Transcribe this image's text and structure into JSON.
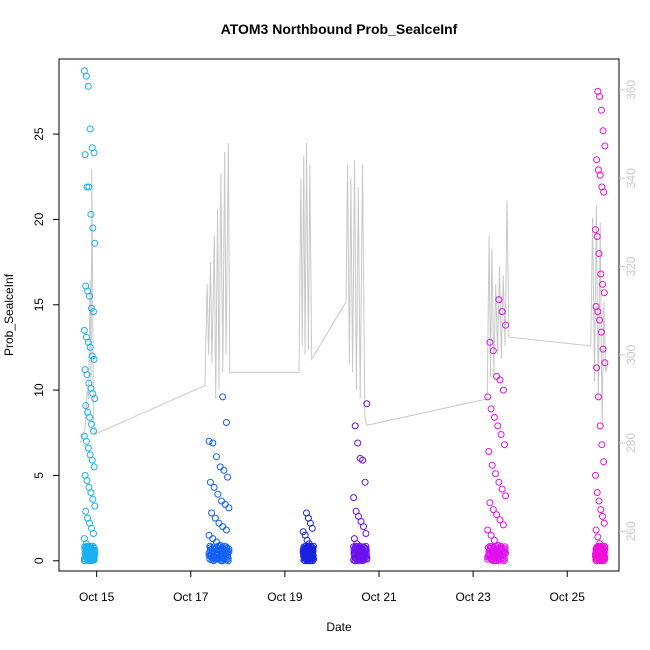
{
  "chart_data": {
    "type": "scatter",
    "title": "ATOM3 Northbound Prob_SealceInf",
    "xlabel": "Date",
    "ylabel": "Prob_SealceInf",
    "x_ticks": [
      {
        "day": 15,
        "label": "Oct 15"
      },
      {
        "day": 17,
        "label": "Oct 17"
      },
      {
        "day": 19,
        "label": "Oct 19"
      },
      {
        "day": 21,
        "label": "Oct 21"
      },
      {
        "day": 23,
        "label": "Oct 23"
      },
      {
        "day": 25,
        "label": "Oct 25"
      }
    ],
    "xlim": [
      14.2,
      26.1
    ],
    "ylim": [
      -0.6,
      29.4
    ],
    "y_ticks": [
      0,
      5,
      10,
      15,
      20,
      25
    ],
    "y2_ticks": [
      260,
      280,
      300,
      320,
      340,
      360
    ],
    "y2lim": [
      251,
      367
    ],
    "colors": {
      "line": "#c8c8c8",
      "groups": [
        "#1ab0f0",
        "#1060f5",
        "#1a22e0",
        "#6a10f0",
        "#e010f0",
        "#f010d8"
      ]
    },
    "groups": [
      {
        "center": 14.85,
        "width": 0.22,
        "color": "#1ab0f0",
        "values": [
          28.7,
          28.4,
          27.8,
          25.3,
          24.2,
          23.9,
          23.8,
          21.9,
          21.9,
          20.3,
          19.5,
          18.6,
          16.1,
          15.8,
          15.5,
          14.8,
          14.6,
          13.5,
          13.1,
          12.8,
          12.5,
          12.0,
          11.8,
          11.2,
          10.9,
          10.4,
          10.1,
          9.8,
          9.5,
          9.1,
          8.7,
          8.4,
          8.0,
          7.6,
          7.3,
          7.0,
          6.6,
          6.2,
          5.9,
          5.5,
          5.0,
          4.7,
          4.3,
          4.0,
          3.6,
          3.2,
          2.9,
          2.5,
          2.2,
          1.9,
          1.6,
          1.3,
          1.0,
          0.8,
          0.5,
          0.3,
          0.1,
          0.0
        ]
      },
      {
        "center": 17.6,
        "width": 0.42,
        "color": "#1060f5",
        "values": [
          9.6,
          8.1,
          7.0,
          6.9,
          6.1,
          5.5,
          5.3,
          4.9,
          4.6,
          4.3,
          3.9,
          3.5,
          3.3,
          3.1,
          2.8,
          2.5,
          2.2,
          2.0,
          1.8,
          1.5,
          1.3,
          1.1,
          0.9,
          0.7,
          0.5,
          0.3,
          0.2,
          0.1,
          0.0
        ]
      },
      {
        "center": 19.5,
        "width": 0.22,
        "color": "#1a22e0",
        "values": [
          2.8,
          2.5,
          2.2,
          1.9,
          1.7,
          1.5,
          1.2,
          1.0,
          0.8,
          0.6,
          0.4,
          0.2,
          0.1,
          0.0
        ]
      },
      {
        "center": 20.6,
        "width": 0.28,
        "color": "#6a10f0",
        "values": [
          9.2,
          7.9,
          6.9,
          6.0,
          5.9,
          4.6,
          3.7,
          2.9,
          2.6,
          2.3,
          2.0,
          1.6,
          1.3,
          1.0,
          0.7,
          0.5,
          0.3,
          0.1,
          0.0
        ]
      },
      {
        "center": 23.5,
        "width": 0.38,
        "color": "#e010f0",
        "values": [
          15.3,
          14.6,
          13.8,
          12.8,
          12.3,
          10.8,
          10.6,
          10.0,
          9.6,
          8.9,
          8.4,
          7.9,
          7.4,
          6.8,
          6.4,
          5.6,
          5.1,
          4.6,
          4.2,
          3.8,
          3.4,
          3.0,
          2.7,
          2.4,
          2.1,
          1.8,
          1.5,
          1.2,
          0.9,
          0.7,
          0.5,
          0.3,
          0.1,
          0.0
        ]
      },
      {
        "center": 25.7,
        "width": 0.2,
        "color": "#f010d8",
        "values": [
          27.5,
          27.2,
          26.4,
          25.2,
          24.3,
          23.5,
          22.9,
          22.6,
          21.9,
          21.6,
          19.4,
          19.0,
          18.0,
          16.8,
          16.2,
          15.7,
          14.9,
          14.6,
          14.1,
          13.4,
          12.4,
          11.6,
          11.3,
          9.6,
          7.9,
          6.8,
          5.8,
          5.0,
          4.0,
          3.5,
          3.0,
          2.6,
          2.2,
          1.8,
          1.4,
          1.0,
          0.7,
          0.4,
          0.2,
          0.0
        ]
      }
    ],
    "line_series": {
      "name": "secondary (right axis)",
      "points": [
        [
          14.65,
          280
        ],
        [
          14.75,
          283
        ],
        [
          14.8,
          292
        ],
        [
          14.83,
          290
        ],
        [
          14.86,
          317
        ],
        [
          14.88,
          294
        ],
        [
          14.9,
          342
        ],
        [
          14.93,
          286
        ],
        [
          14.96,
          282
        ],
        [
          17.3,
          293
        ],
        [
          17.35,
          316
        ],
        [
          17.38,
          300
        ],
        [
          17.42,
          321
        ],
        [
          17.45,
          298
        ],
        [
          17.5,
          327
        ],
        [
          17.53,
          290
        ],
        [
          17.57,
          333
        ],
        [
          17.6,
          292
        ],
        [
          17.64,
          341
        ],
        [
          17.68,
          296
        ],
        [
          17.72,
          346
        ],
        [
          17.75,
          300
        ],
        [
          17.8,
          348
        ],
        [
          17.83,
          296
        ],
        [
          19.3,
          296
        ],
        [
          19.34,
          340
        ],
        [
          19.37,
          302
        ],
        [
          19.4,
          345
        ],
        [
          19.43,
          300
        ],
        [
          19.46,
          348
        ],
        [
          19.5,
          301
        ],
        [
          19.53,
          343
        ],
        [
          19.57,
          299
        ],
        [
          20.3,
          312
        ],
        [
          20.33,
          343
        ],
        [
          20.37,
          298
        ],
        [
          20.4,
          340
        ],
        [
          20.44,
          296
        ],
        [
          20.48,
          344
        ],
        [
          20.52,
          292
        ],
        [
          20.56,
          338
        ],
        [
          20.6,
          290
        ],
        [
          20.65,
          343
        ],
        [
          20.7,
          286
        ],
        [
          20.74,
          284
        ],
        [
          23.3,
          290
        ],
        [
          23.34,
          327
        ],
        [
          23.37,
          295
        ],
        [
          23.4,
          324
        ],
        [
          23.44,
          296
        ],
        [
          23.48,
          316
        ],
        [
          23.52,
          300
        ],
        [
          23.56,
          320
        ],
        [
          23.6,
          299
        ],
        [
          23.64,
          318
        ],
        [
          23.68,
          302
        ],
        [
          23.72,
          335
        ],
        [
          23.76,
          304
        ],
        [
          25.5,
          302
        ],
        [
          25.54,
          331
        ],
        [
          25.58,
          294
        ],
        [
          25.62,
          334
        ],
        [
          25.66,
          290
        ],
        [
          25.7,
          330
        ],
        [
          25.74,
          284
        ],
        [
          25.78,
          312
        ],
        [
          25.82,
          296
        ],
        [
          25.86,
          298
        ]
      ]
    }
  }
}
